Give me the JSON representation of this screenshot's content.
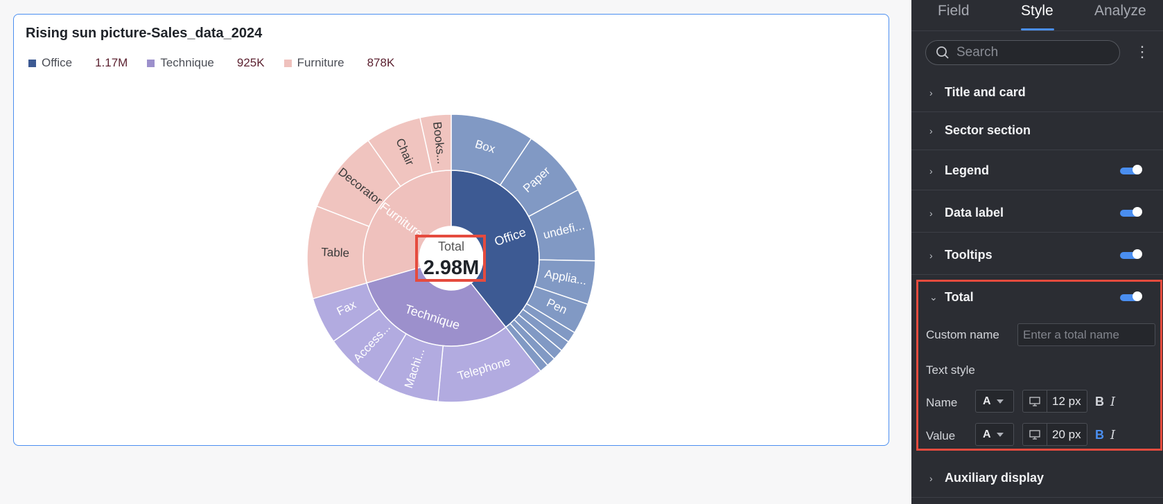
{
  "chart": {
    "title": "Rising sun picture-Sales_data_2024",
    "legend": [
      {
        "label": "Office",
        "value": "1.17M",
        "color": "#3d5a93"
      },
      {
        "label": "Technique",
        "value": "925K",
        "color": "#9c90cc"
      },
      {
        "label": "Furniture",
        "value": "878K",
        "color": "#efc1bd"
      }
    ],
    "total": {
      "name": "Total",
      "value": "2.98M"
    }
  },
  "chart_data": {
    "type": "sunburst",
    "title": "Rising sun picture-Sales_data_2024",
    "total": {
      "label": "Total",
      "value": 2980000
    },
    "inner": [
      {
        "name": "Office",
        "value": 1170000,
        "color": "#3d5a93"
      },
      {
        "name": "Technique",
        "value": 925000,
        "color": "#9c90cc"
      },
      {
        "name": "Furniture",
        "value": 878000,
        "color": "#efc1bd"
      }
    ],
    "outer": [
      {
        "parent": "Office",
        "label": "Box",
        "value": 230000
      },
      {
        "parent": "Office",
        "label": "Paper",
        "value": 190000
      },
      {
        "parent": "Office",
        "label": "undefi...",
        "value": 200000
      },
      {
        "parent": "Office",
        "label": "Applia...",
        "value": 120000
      },
      {
        "parent": "Office",
        "label": "Pen",
        "value": 85000
      },
      {
        "parent": "Office",
        "label": "",
        "value": 30000
      },
      {
        "parent": "Office",
        "label": "",
        "value": 30000
      },
      {
        "parent": "Office",
        "label": "",
        "value": 30000
      },
      {
        "parent": "Office",
        "label": "",
        "value": 25000
      },
      {
        "parent": "Office",
        "label": "",
        "value": 25000
      },
      {
        "parent": "Technique",
        "label": "Telephone",
        "value": 300000
      },
      {
        "parent": "Technique",
        "label": "Machi...",
        "value": 175000
      },
      {
        "parent": "Technique",
        "label": "Access...",
        "value": 165000
      },
      {
        "parent": "Technique",
        "label": "Fax",
        "value": 130000
      },
      {
        "parent": "Furniture",
        "label": "Table",
        "value": 240000
      },
      {
        "parent": "Furniture",
        "label": "Decorator",
        "value": 215000
      },
      {
        "parent": "Furniture",
        "label": "Chair",
        "value": 145000
      },
      {
        "parent": "Furniture",
        "label": "Books...",
        "value": 80000
      }
    ],
    "legend_position": "top-left"
  },
  "panel": {
    "tabs": [
      "Field",
      "Style",
      "Analyze"
    ],
    "active_tab": "Style",
    "search_placeholder": "Search",
    "sections": [
      "Title and card",
      "Sector section",
      "Legend",
      "Data label",
      "Tooltips",
      "Total",
      "Auxiliary display"
    ],
    "total_section": {
      "custom_name_label": "Custom name",
      "custom_name_placeholder": "Enter a total name",
      "text_style_label": "Text style",
      "name_label": "Name",
      "value_label": "Value",
      "font_glyph": "A",
      "name_size": "12 px",
      "value_size": "20 px",
      "bold_glyph": "B",
      "italic_glyph": "I"
    }
  },
  "colors": {
    "accent": "#4a8ef0",
    "highlight": "#e54b3e",
    "panel_bg": "#2b2d33"
  }
}
